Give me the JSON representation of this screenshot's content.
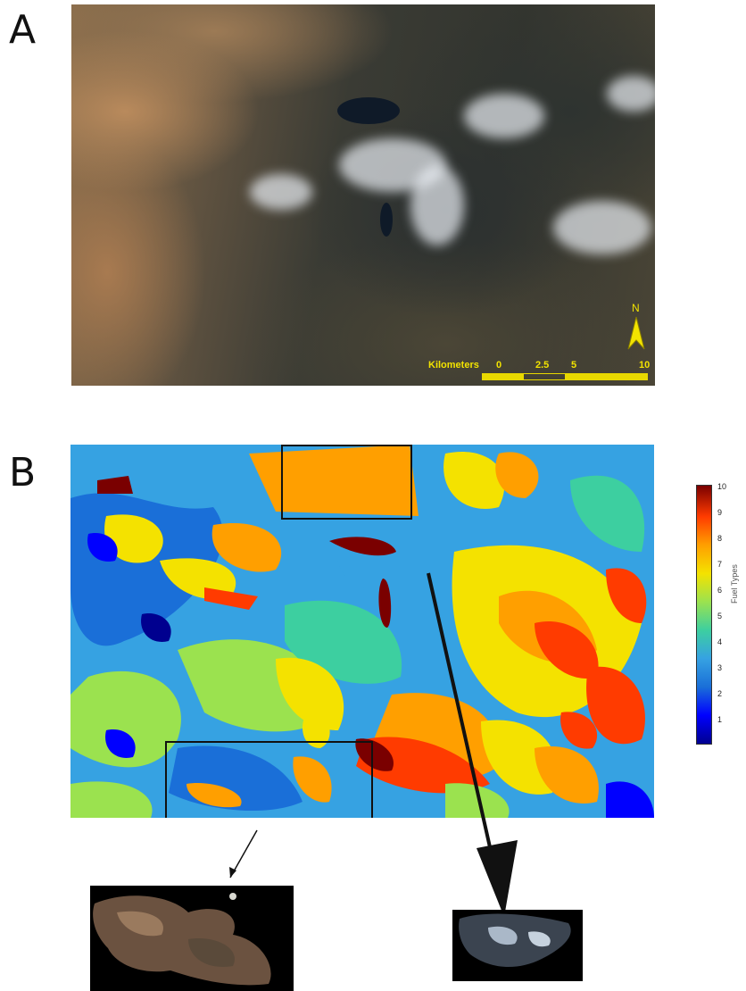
{
  "panel_a": {
    "letter": "A",
    "scalebar": {
      "units_label": "Kilometers",
      "ticks": [
        "0",
        "2.5",
        "5",
        "10"
      ]
    },
    "north_label": "N"
  },
  "panel_b": {
    "letter": "B",
    "colorbar": {
      "title": "Fuel Types",
      "ticks": [
        "10",
        "9",
        "8",
        "7",
        "6",
        "5",
        "4",
        "3",
        "2",
        "1"
      ],
      "colors": [
        "#00008f",
        "#0000ff",
        "#1a6fd8",
        "#36a2e2",
        "#3dcfa0",
        "#9be24f",
        "#f4e200",
        "#ff9f00",
        "#ff3b00",
        "#7a0000"
      ]
    }
  }
}
